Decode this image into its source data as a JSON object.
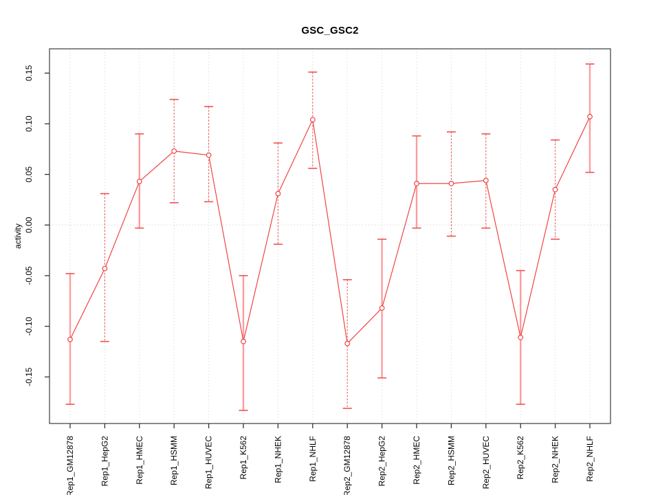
{
  "chart_data": {
    "type": "line",
    "title": "GSC_GSC2",
    "xlabel": "",
    "ylabel": "activity",
    "categories": [
      "Rep1_GM12878",
      "Rep1_HepG2",
      "Rep1_HMEC",
      "Rep1_HSMM",
      "Rep1_HUVEC",
      "Rep1_K562",
      "Rep1_NHEK",
      "Rep1_NHLF",
      "Rep2_GM12878",
      "Rep2_HepG2",
      "Rep2_HMEC",
      "Rep2_HSMM",
      "Rep2_HUVEC",
      "Rep2_K562",
      "Rep2_NHEK",
      "Rep2_NHLF"
    ],
    "series": [
      {
        "name": "activity",
        "values": [
          -0.113,
          -0.043,
          0.043,
          0.073,
          0.069,
          -0.115,
          0.031,
          0.104,
          -0.117,
          -0.082,
          0.041,
          0.041,
          0.044,
          -0.111,
          0.035,
          0.107
        ],
        "lower": [
          -0.177,
          -0.115,
          -0.003,
          0.022,
          0.023,
          -0.183,
          -0.019,
          0.056,
          -0.181,
          -0.151,
          -0.003,
          -0.011,
          -0.003,
          -0.177,
          -0.014,
          0.052
        ],
        "upper": [
          -0.048,
          0.031,
          0.09,
          0.124,
          0.117,
          -0.05,
          0.081,
          0.151,
          -0.054,
          -0.014,
          0.088,
          0.092,
          0.09,
          -0.045,
          0.084,
          0.159
        ]
      }
    ],
    "bar_styles": [
      "solid",
      "dashed",
      "solid",
      "dashed",
      "dashed",
      "solid",
      "dashed",
      "dashed",
      "dashed",
      "solid",
      "solid",
      "dashed",
      "dashed",
      "solid",
      "dashed",
      "solid"
    ],
    "ylim": [
      -0.196,
      0.174
    ],
    "yticks": [
      -0.15,
      -0.1,
      -0.05,
      0.0,
      0.05,
      0.1,
      0.15
    ],
    "ytick_labels": [
      "-0.15",
      "-0.10",
      "-0.05",
      "0.00",
      "0.05",
      "0.10",
      "0.15"
    ],
    "grid": {
      "vertical_category_lines": true,
      "zero_line": true,
      "legend": "none"
    },
    "marker": "open-circle",
    "colors": {
      "line": "#f04343",
      "marker_stroke": "#f04343",
      "marker_fill": "#ffffff",
      "errorbar_solid": "#ff9c9c",
      "errorbar_dashed": "#f05050",
      "cap": "#f05050",
      "grid": "#dedede",
      "zero_line": "#d8d8d8",
      "frame": "#555555",
      "tick": "#333333",
      "text": "#000000"
    }
  }
}
